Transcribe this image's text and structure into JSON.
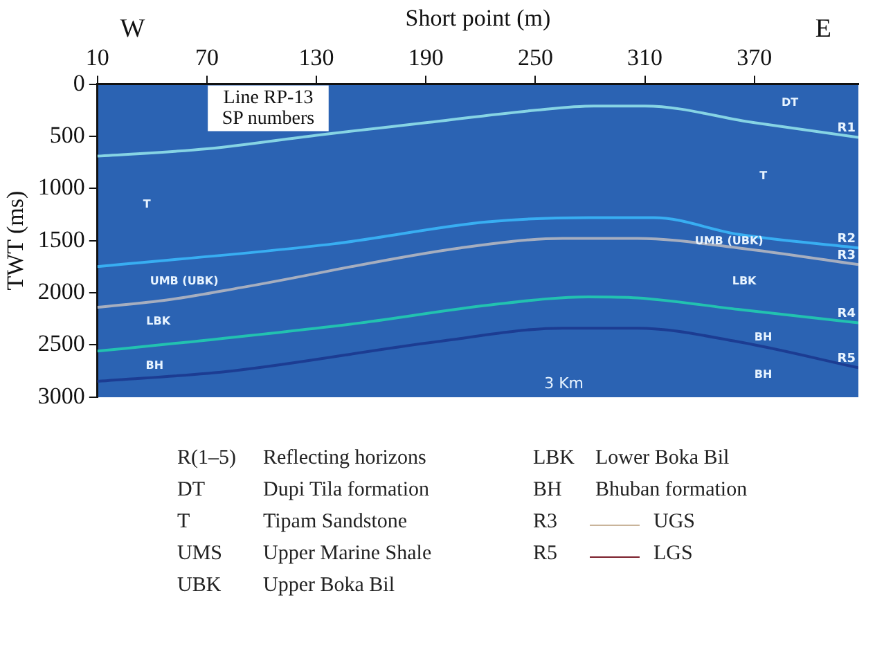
{
  "chart_data": {
    "type": "line",
    "xlabel": "Short point (m)",
    "ylabel": "TWT (ms)",
    "xlim": [
      10,
      427
    ],
    "xticks": [
      10,
      70,
      130,
      190,
      250,
      310,
      370
    ],
    "ylim": [
      3000,
      0
    ],
    "yticks": [
      0,
      500,
      1000,
      1500,
      2000,
      2500,
      3000
    ],
    "grid": false,
    "legend": false,
    "marker": "none",
    "line_style": "solid",
    "series": [
      {
        "name": "R1",
        "color": "#86d4e4",
        "x": [
          10,
          70,
          130,
          190,
          250,
          282,
          310,
          370,
          427
        ],
        "values": [
          690,
          620,
          490,
          370,
          250,
          210,
          210,
          370,
          510
        ]
      },
      {
        "name": "R2",
        "color": "#38aef2",
        "x": [
          10,
          140,
          224,
          279,
          315,
          361,
          427
        ],
        "values": [
          1750,
          1530,
          1320,
          1280,
          1280,
          1440,
          1570
        ]
      },
      {
        "name": "R3",
        "color": "#a6aebf",
        "x": [
          10,
          48,
          89,
          209,
          265,
          306,
          361,
          427
        ],
        "values": [
          2140,
          2070,
          1950,
          1570,
          1480,
          1480,
          1570,
          1730
        ]
      },
      {
        "name": "R4",
        "color": "#22c2b0",
        "x": [
          10,
          56,
          154,
          224,
          279,
          306,
          361,
          427
        ],
        "values": [
          2560,
          2480,
          2290,
          2120,
          2040,
          2050,
          2160,
          2290
        ]
      },
      {
        "name": "R5",
        "color": "#1c3c92",
        "x": [
          10,
          84,
          196,
          265,
          306,
          361,
          427
        ],
        "values": [
          2850,
          2750,
          2470,
          2340,
          2340,
          2470,
          2720
        ]
      }
    ],
    "annotations": [
      "W",
      "E",
      "Line RP-13\nSP numbers",
      "DT",
      "T",
      "T",
      "UMB (UBK)",
      "UMB (UBK)",
      "LBK",
      "LBK",
      "BH",
      "BH",
      "BH",
      "3 Km",
      "R(1–5)",
      "Reflecting horizons",
      "DT",
      "Dupi Tila formation",
      "T",
      "Tipam Sandstone",
      "UMS",
      "Upper Marine Shale",
      "UBK",
      "Upper Boka Bil",
      "LBK",
      "Lower Boka Bil",
      "BH",
      "Bhuban formation",
      "R3",
      "UGS",
      "R5",
      "LGS"
    ]
  }
}
